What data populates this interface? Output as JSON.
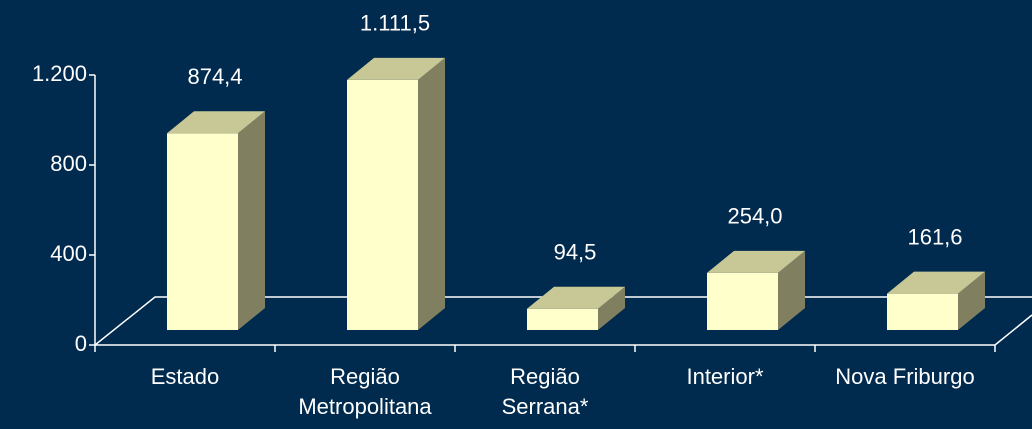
{
  "chart_data": {
    "type": "bar3d",
    "categories": [
      "Estado",
      "Região\nMetropolitana",
      "Região\nSerrana*",
      "Interior*",
      "Nova Friburgo"
    ],
    "values": [
      874.4,
      1111.5,
      94.5,
      254.0,
      161.6
    ],
    "value_labels": [
      "874,4",
      "1.111,5",
      "94,5",
      "254,0",
      "161,6"
    ],
    "ylim": [
      0,
      1200
    ],
    "yticks": [
      0,
      400,
      800,
      {
        "value": 1200,
        "label": "1.200"
      }
    ],
    "color": "#ffffcc"
  }
}
